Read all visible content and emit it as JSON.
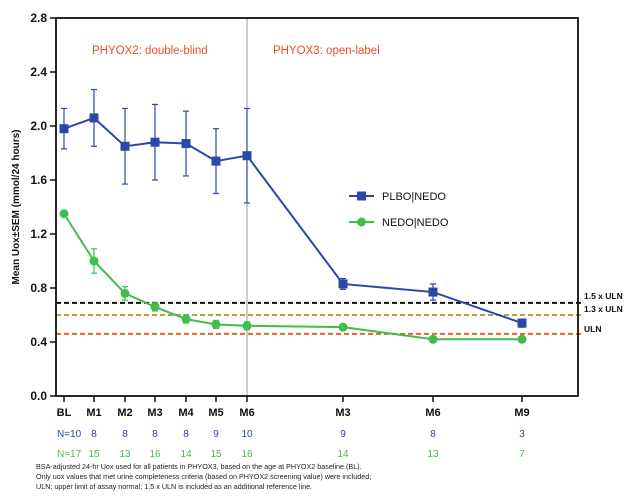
{
  "chart_data": {
    "type": "line",
    "ylabel": "Mean Uox±SEM (mmol/24 hours)",
    "xlabel": "",
    "ylim": [
      0.0,
      2.8
    ],
    "yticks": [
      "0.0",
      "0.4",
      "0.8",
      "1.2",
      "1.6",
      "2.0",
      "2.4",
      "2.8"
    ],
    "categories": [
      "BL",
      "M1",
      "M2",
      "M3",
      "M4",
      "M5",
      "M6",
      "M3",
      "M6",
      "M9"
    ],
    "grid": false,
    "legend_position": "center-right",
    "phase_labels": [
      "PHYOX2: double-blind",
      "PHYOX3: open-label"
    ],
    "phase_color": "#e8502a",
    "series": [
      {
        "name": "PLBO|NEDO",
        "color": "#2b47a8",
        "marker": "square",
        "values": [
          1.98,
          2.06,
          1.85,
          1.88,
          1.87,
          1.74,
          1.78,
          0.83,
          0.77,
          0.54
        ],
        "sem": [
          0.15,
          0.21,
          0.28,
          0.28,
          0.24,
          0.24,
          0.35,
          0.04,
          0.06,
          0.03
        ],
        "n_label": "N=10",
        "n": [
          "8",
          "8",
          "8",
          "8",
          "9",
          "10",
          "9",
          "8",
          "3"
        ],
        "n_color": "#2b47a8"
      },
      {
        "name": "NEDO|NEDO",
        "color": "#3fbf4a",
        "marker": "circle",
        "values": [
          1.35,
          1.0,
          0.76,
          0.66,
          0.57,
          0.53,
          0.52,
          0.51,
          0.42,
          0.42
        ],
        "sem": [
          0.0,
          0.09,
          0.05,
          0.03,
          0.03,
          0.03,
          0.03,
          0.02,
          0.02,
          0.02
        ],
        "n_label": "N=17",
        "n": [
          "15",
          "13",
          "16",
          "14",
          "15",
          "16",
          "14",
          "13",
          "7"
        ],
        "n_color": "#3fbf4a"
      }
    ],
    "reference_lines": [
      {
        "label": "1.5 x ULN",
        "value": 0.69,
        "color": "#111111"
      },
      {
        "label": "1.3 x ULN",
        "value": 0.6,
        "color": "#b8a040"
      },
      {
        "label": "ULN",
        "value": 0.46,
        "color": "#e0662a"
      }
    ]
  },
  "footnotes": [
    "BSA-adjusted 24-hr Uox used for all patients in PHYOX3, based on the age at PHYOX2 baseline (BL).",
    "Only uox values that met urine completeness criteria (based on PHYOX2 screening value) were included;",
    "ULN: upper limit of assay normal; 1.5 x ULN is included as an additional reference line."
  ]
}
